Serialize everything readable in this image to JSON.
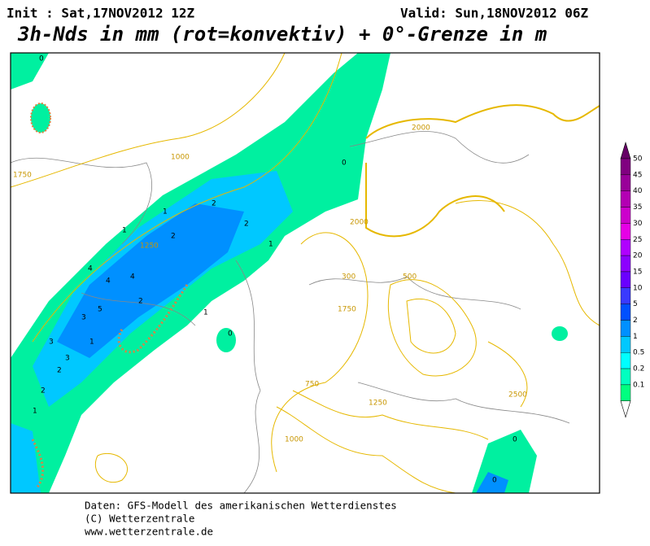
{
  "header": {
    "init": "Init : Sat,17NOV2012  12Z",
    "valid": "Valid: Sun,18NOV2012 06Z",
    "title": "3h-Nds in mm (rot=konvektiv) + 0°-Grenze in m"
  },
  "colorbar": {
    "labels": [
      50,
      45,
      40,
      35,
      30,
      25,
      20,
      15,
      10,
      5,
      2,
      1,
      0.5,
      0.2,
      0.1
    ],
    "colors": [
      "#800080",
      "#990099",
      "#b300b3",
      "#cc00cc",
      "#e600e6",
      "#b000ff",
      "#8c00ff",
      "#6a00ff",
      "#3a3aff",
      "#0050ff",
      "#0090ff",
      "#00c8ff",
      "#00ffff",
      "#00ffc0",
      "#00ff80"
    ],
    "top_color": "#660066"
  },
  "map": {
    "precip_labels": [
      "0",
      "1",
      "1",
      "2",
      "2",
      "2",
      "1",
      "0",
      "4",
      "4",
      "5",
      "4",
      "3",
      "2",
      "1",
      "3",
      "3",
      "1",
      "2",
      "2",
      "1",
      "0",
      "0",
      "0"
    ],
    "contour_labels": [
      "1000",
      "1750",
      "1250",
      "2000",
      "2000",
      "500",
      "300",
      "1750",
      "1250",
      "750",
      "2500",
      "1000"
    ]
  },
  "footer": {
    "lines": [
      "Daten: GFS-Modell des amerikanischen Wetterdienstes",
      "(C) Wetterzentrale",
      "www.wetterzentrale.de"
    ]
  }
}
